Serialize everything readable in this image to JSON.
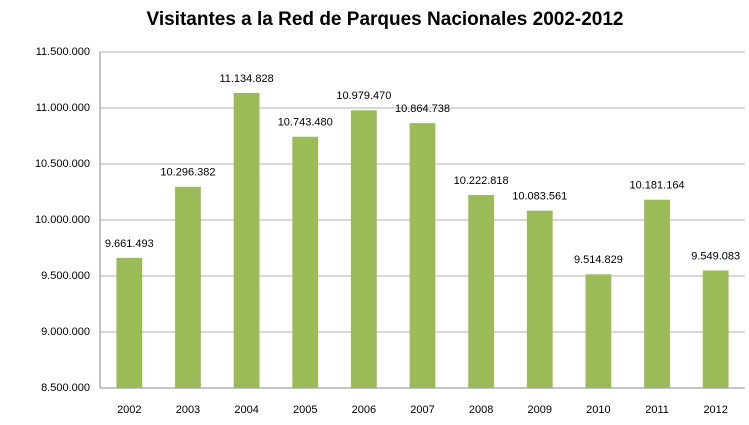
{
  "chart_data": {
    "type": "bar",
    "title": "Visitantes a la Red de Parques Nacionales 2002-2012",
    "categories": [
      "2002",
      "2003",
      "2004",
      "2005",
      "2006",
      "2007",
      "2008",
      "2009",
      "2010",
      "2011",
      "2012"
    ],
    "values": [
      9661493,
      10296382,
      11134828,
      10743480,
      10979470,
      10864738,
      10222818,
      10083561,
      9514829,
      10181164,
      9549083
    ],
    "value_labels": [
      "9.661.493",
      "10.296.382",
      "11.134.828",
      "10.743.480",
      "10.979.470",
      "10.864.738",
      "10.222.818",
      "10.083.561",
      "9.514.829",
      "10.181.164",
      "9.549.083"
    ],
    "color": "#9bbb59",
    "ylim": [
      8500000,
      11500000
    ],
    "yticks": [
      {
        "value": 8500000,
        "label": "8.500.000"
      },
      {
        "value": 9000000,
        "label": "9.000.000"
      },
      {
        "value": 9500000,
        "label": "9.500.000"
      },
      {
        "value": 10000000,
        "label": "10.000.000"
      },
      {
        "value": 10500000,
        "label": "10.500.000"
      },
      {
        "value": 11000000,
        "label": "11.000.000"
      },
      {
        "value": 11500000,
        "label": "11.500.000"
      }
    ],
    "grid": true
  }
}
